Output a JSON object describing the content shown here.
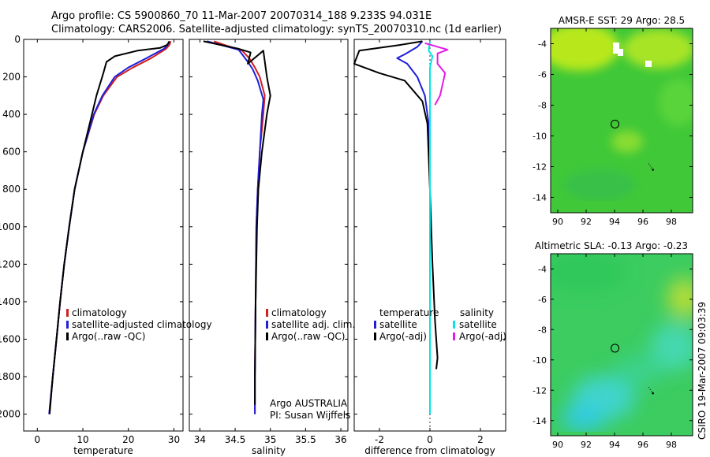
{
  "header": {
    "line1": "Argo profile: CS 5900860_70 11-Mar-2007 20070314_188 9.233S 94.031E",
    "line2": "Climatology: CARS2006. Satellite-adjusted climatology: synTS_20070310.nc (1d earlier)"
  },
  "credit": "CSIRO 19-Mar-2007 09:03:39",
  "colors": {
    "climatology": "#d11f1f",
    "satellite": "#1f1fd9",
    "argo": "#000000",
    "sal_satellite": "#00e6e6",
    "sal_argo": "#e619e6"
  },
  "chart_data": [
    {
      "type": "line",
      "title": "",
      "xlabel": "temperature",
      "ylabel": "",
      "xlim": [
        -3,
        32
      ],
      "ylim": [
        2090,
        0
      ],
      "xticks": [
        0,
        10,
        20,
        30
      ],
      "xtick_labels": [
        "0",
        "10",
        "20",
        "30"
      ],
      "yticks": [
        0,
        200,
        400,
        600,
        800,
        1000,
        1200,
        1400,
        1600,
        1800,
        2000
      ],
      "ytick_labels": [
        "0",
        "200",
        "400",
        "600",
        "800",
        "1000",
        "1200",
        "1400",
        "1600",
        "1800",
        "2000"
      ],
      "legend": [
        "climatology",
        "satellite-adjusted climatology",
        "Argo(..raw -QC)"
      ],
      "series": [
        {
          "name": "climatology",
          "color": "#d11f1f",
          "points": [
            [
              29.3,
              10
            ],
            [
              29.0,
              30
            ],
            [
              28.3,
              50
            ],
            [
              25.0,
              100
            ],
            [
              21.0,
              150
            ],
            [
              17.5,
              200
            ],
            [
              14.5,
              300
            ],
            [
              12.5,
              400
            ],
            [
              10.0,
              600
            ],
            [
              8.2,
              800
            ],
            [
              7.0,
              1000
            ],
            [
              5.9,
              1200
            ],
            [
              5.0,
              1400
            ],
            [
              4.2,
              1600
            ],
            [
              3.4,
              1800
            ],
            [
              2.6,
              2000
            ]
          ]
        },
        {
          "name": "satellite-adjusted climatology",
          "color": "#1f1fd9",
          "points": [
            [
              29.0,
              10
            ],
            [
              28.6,
              30
            ],
            [
              27.8,
              50
            ],
            [
              24.0,
              100
            ],
            [
              20.0,
              150
            ],
            [
              17.0,
              200
            ],
            [
              14.3,
              300
            ],
            [
              12.4,
              400
            ],
            [
              10.0,
              600
            ],
            [
              8.2,
              800
            ],
            [
              7.0,
              1000
            ],
            [
              5.9,
              1200
            ],
            [
              5.0,
              1400
            ],
            [
              4.2,
              1600
            ],
            [
              3.4,
              1800
            ],
            [
              2.6,
              2000
            ]
          ]
        },
        {
          "name": "Argo(..raw -QC)",
          "color": "#000000",
          "points": [
            [
              29.0,
              10
            ],
            [
              28.5,
              30
            ],
            [
              27.0,
              45
            ],
            [
              22.0,
              60
            ],
            [
              17.0,
              90
            ],
            [
              15.2,
              120
            ],
            [
              14.5,
              180
            ],
            [
              13.0,
              300
            ],
            [
              12.0,
              400
            ],
            [
              10.0,
              600
            ],
            [
              8.2,
              800
            ],
            [
              7.0,
              1000
            ],
            [
              5.9,
              1200
            ],
            [
              5.0,
              1400
            ],
            [
              4.2,
              1600
            ],
            [
              3.4,
              1800
            ],
            [
              2.7,
              2000
            ]
          ]
        }
      ]
    },
    {
      "type": "line",
      "title": "",
      "xlabel": "salinity",
      "ylabel": "",
      "xlim": [
        33.85,
        36.1
      ],
      "ylim": [
        2090,
        0
      ],
      "xticks": [
        34,
        34.5,
        35,
        35.5,
        36
      ],
      "xtick_labels": [
        "34",
        "34.5",
        "35",
        "35.5",
        "36"
      ],
      "legend": [
        "climatology",
        "satellite adj. clim.",
        "Argo(..raw -QC)"
      ],
      "annotation": [
        "Argo AUSTRALIA",
        "PI: Susan Wijffels"
      ],
      "series": [
        {
          "name": "climatology",
          "color": "#d11f1f",
          "points": [
            [
              34.2,
              10
            ],
            [
              34.35,
              30
            ],
            [
              34.6,
              60
            ],
            [
              34.7,
              100
            ],
            [
              34.78,
              150
            ],
            [
              34.85,
              200
            ],
            [
              34.92,
              300
            ],
            [
              34.9,
              400
            ],
            [
              34.85,
              600
            ],
            [
              34.82,
              800
            ],
            [
              34.8,
              1000
            ],
            [
              34.79,
              1400
            ],
            [
              34.78,
              1800
            ],
            [
              34.78,
              2000
            ]
          ]
        },
        {
          "name": "satellite adj. clim.",
          "color": "#1f1fd9",
          "points": [
            [
              34.1,
              10
            ],
            [
              34.3,
              30
            ],
            [
              34.55,
              55
            ],
            [
              34.6,
              80
            ],
            [
              34.68,
              120
            ],
            [
              34.75,
              160
            ],
            [
              34.82,
              220
            ],
            [
              34.9,
              320
            ],
            [
              34.88,
              400
            ],
            [
              34.85,
              600
            ],
            [
              34.82,
              800
            ],
            [
              34.8,
              1000
            ],
            [
              34.79,
              1400
            ],
            [
              34.78,
              1800
            ],
            [
              34.78,
              2000
            ]
          ]
        },
        {
          "name": "Argo(..raw -QC)",
          "color": "#000000",
          "points": [
            [
              34.05,
              10
            ],
            [
              34.3,
              30
            ],
            [
              34.55,
              50
            ],
            [
              34.72,
              70
            ],
            [
              34.68,
              130
            ],
            [
              34.9,
              60
            ],
            [
              34.95,
              200
            ],
            [
              35.0,
              300
            ],
            [
              34.95,
              400
            ],
            [
              34.88,
              600
            ],
            [
              34.83,
              800
            ],
            [
              34.81,
              1000
            ],
            [
              34.79,
              1400
            ],
            [
              34.78,
              1800
            ],
            [
              34.78,
              1950
            ]
          ]
        }
      ]
    },
    {
      "type": "line",
      "title": "",
      "xlabel": "difference from climatology",
      "ylabel": "",
      "xlim": [
        -3,
        3
      ],
      "ylim": [
        2090,
        0
      ],
      "xticks": [
        -2,
        0,
        2
      ],
      "xtick_labels": [
        "-2",
        "0",
        "2"
      ],
      "legend_temperature_title": "temperature",
      "legend_salinity_title": "salinity",
      "legend": [
        "satellite",
        "Argo(-adj)",
        "satellite",
        "Argo(-adj)"
      ],
      "series": [
        {
          "name": "temperature satellite",
          "color": "#1f1fd9",
          "points": [
            [
              -0.3,
              10
            ],
            [
              -0.5,
              40
            ],
            [
              -1.0,
              80
            ],
            [
              -1.3,
              100
            ],
            [
              -0.9,
              130
            ],
            [
              -0.5,
              200
            ],
            [
              -0.2,
              300
            ],
            [
              -0.05,
              450
            ],
            [
              0.0,
              800
            ],
            [
              0.0,
              1200
            ],
            [
              0.0,
              1600
            ],
            [
              0.0,
              2000
            ]
          ]
        },
        {
          "name": "temperature Argo(-adj)",
          "color": "#000000",
          "points": [
            [
              -0.3,
              10
            ],
            [
              -1.2,
              30
            ],
            [
              -2.8,
              60
            ],
            [
              -3.0,
              130
            ],
            [
              -2.0,
              180
            ],
            [
              -1.0,
              220
            ],
            [
              -0.3,
              330
            ],
            [
              -0.1,
              450
            ],
            [
              0.0,
              800
            ],
            [
              0.1,
              1200
            ],
            [
              0.2,
              1500
            ],
            [
              0.3,
              1700
            ],
            [
              0.25,
              1760
            ]
          ]
        },
        {
          "name": "salinity satellite",
          "color": "#00e6e6",
          "points": [
            [
              0.0,
              10
            ],
            [
              -0.05,
              60
            ],
            [
              0.1,
              90
            ],
            [
              0.0,
              150
            ],
            [
              0.0,
              400
            ],
            [
              0.0,
              1000
            ],
            [
              0.0,
              1600
            ],
            [
              0.0,
              2000
            ]
          ]
        },
        {
          "name": "salinity Argo(-adj)",
          "color": "#e619e6",
          "points": [
            [
              -0.2,
              20
            ],
            [
              0.7,
              55
            ],
            [
              0.3,
              75
            ],
            [
              0.3,
              130
            ],
            [
              0.6,
              180
            ],
            [
              0.4,
              300
            ],
            [
              0.2,
              350
            ]
          ]
        }
      ]
    },
    {
      "type": "heatmap",
      "title": "AMSR-E SST: 29 Argo: 28.5",
      "xlim": [
        89.5,
        99.5
      ],
      "ylim": [
        -15,
        -3
      ],
      "xticks": [
        90,
        92,
        94,
        96,
        98
      ],
      "xtick_labels": [
        "90",
        "92",
        "94",
        "96",
        "98"
      ],
      "yticks": [
        -4,
        -6,
        -8,
        -10,
        -12,
        -14
      ],
      "ytick_labels": [
        "-4",
        "-6",
        "-8",
        "-10",
        "-12",
        "-14"
      ],
      "argo_position": [
        94.03,
        -9.23
      ],
      "track": [
        [
          96.4,
          -11.8
        ],
        [
          96.7,
          -12.2
        ]
      ]
    },
    {
      "type": "heatmap",
      "title": "Altimetric SLA: -0.13 Argo: -0.23",
      "xlim": [
        89.5,
        99.5
      ],
      "ylim": [
        -15,
        -3
      ],
      "xticks": [
        90,
        92,
        94,
        96,
        98
      ],
      "xtick_labels": [
        "90",
        "92",
        "94",
        "96",
        "98"
      ],
      "yticks": [
        -4,
        -6,
        -8,
        -10,
        -12,
        -14
      ],
      "ytick_labels": [
        "-4",
        "-6",
        "-8",
        "-10",
        "-12",
        "-14"
      ],
      "argo_position": [
        94.03,
        -9.23
      ],
      "track": [
        [
          96.4,
          -11.8
        ],
        [
          96.7,
          -12.2
        ]
      ]
    }
  ]
}
